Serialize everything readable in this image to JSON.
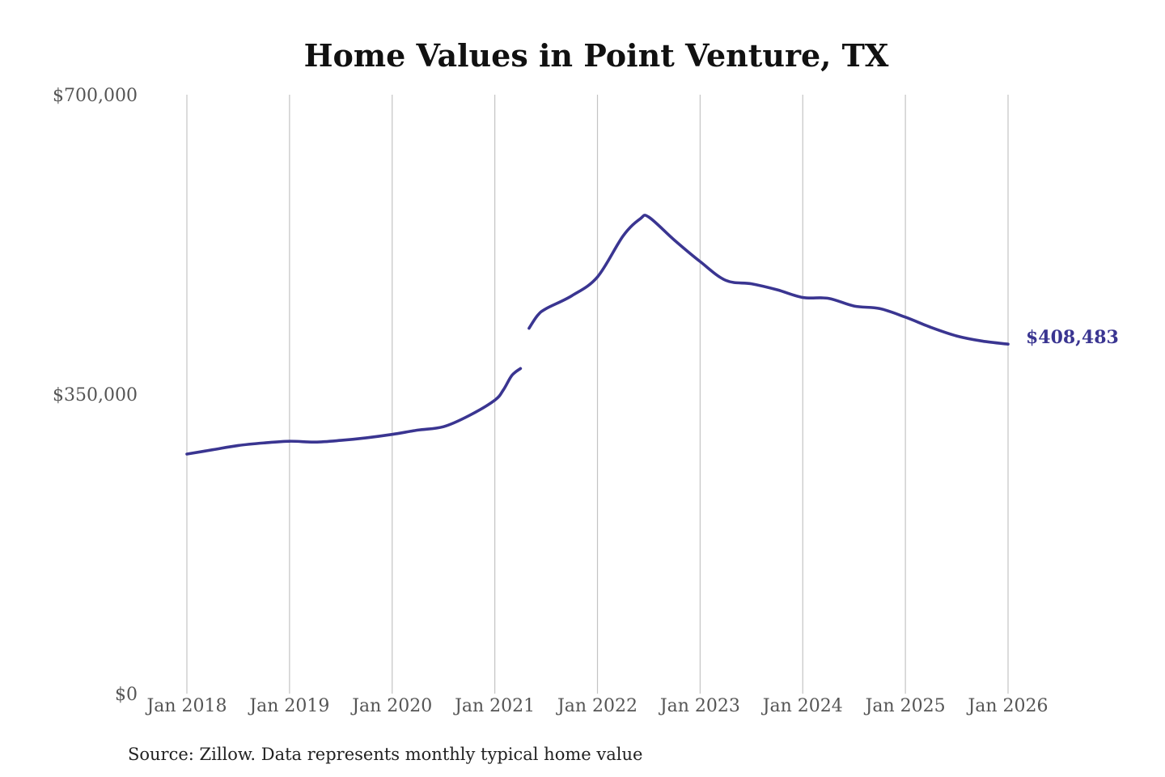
{
  "chart_data": {
    "type": "line",
    "title": "Home Values in Point Venture, TX",
    "source": "Source: Zillow. Data represents monthly typical home value",
    "xlabel": "",
    "ylabel": "",
    "ylim": [
      0,
      700000
    ],
    "y_ticks": [
      {
        "value": 0,
        "label": "$0"
      },
      {
        "value": 350000,
        "label": "$350,000"
      },
      {
        "value": 700000,
        "label": "$700,000"
      }
    ],
    "x_ticks": [
      {
        "value": 2018,
        "label": "Jan 2018"
      },
      {
        "value": 2019,
        "label": "Jan 2019"
      },
      {
        "value": 2020,
        "label": "Jan 2020"
      },
      {
        "value": 2021,
        "label": "Jan 2021"
      },
      {
        "value": 2022,
        "label": "Jan 2022"
      },
      {
        "value": 2023,
        "label": "Jan 2023"
      },
      {
        "value": 2024,
        "label": "Jan 2024"
      },
      {
        "value": 2025,
        "label": "Jan 2025"
      },
      {
        "value": 2026,
        "label": "Jan 2026"
      }
    ],
    "grid": "vertical",
    "line_color": "#3a3591",
    "end_label": "$408,483",
    "series": [
      {
        "segments": [
          [
            [
              "2018-01",
              280000
            ],
            [
              "2018-04",
              285000
            ],
            [
              "2018-07",
              290000
            ],
            [
              "2018-10",
              293000
            ],
            [
              "2019-01",
              295000
            ],
            [
              "2019-04",
              294000
            ],
            [
              "2019-07",
              296000
            ],
            [
              "2019-10",
              299000
            ],
            [
              "2020-01",
              303000
            ],
            [
              "2020-04",
              308000
            ],
            [
              "2020-07",
              312000
            ],
            [
              "2020-10",
              325000
            ],
            [
              "2021-01",
              343000
            ],
            [
              "2021-02",
              355000
            ],
            [
              "2021-03",
              372000
            ],
            [
              "2021-04",
              380000
            ]
          ],
          [
            [
              "2021-05",
              427000
            ],
            [
              "2021-06",
              442000
            ],
            [
              "2021-07",
              450000
            ],
            [
              "2021-10",
              465000
            ],
            [
              "2022-01",
              487000
            ],
            [
              "2022-04",
              535000
            ],
            [
              "2022-06",
              555000
            ],
            [
              "2022-07",
              557000
            ],
            [
              "2022-10",
              530000
            ],
            [
              "2023-01",
              505000
            ],
            [
              "2023-04",
              483000
            ],
            [
              "2023-07",
              479000
            ],
            [
              "2023-10",
              472000
            ],
            [
              "2024-01",
              463000
            ],
            [
              "2024-04",
              462000
            ],
            [
              "2024-07",
              453000
            ],
            [
              "2024-10",
              450000
            ],
            [
              "2025-01",
              440000
            ],
            [
              "2025-04",
              428000
            ],
            [
              "2025-07",
              418000
            ],
            [
              "2025-10",
              412000
            ],
            [
              "2026-01",
              408483
            ]
          ]
        ]
      }
    ]
  }
}
